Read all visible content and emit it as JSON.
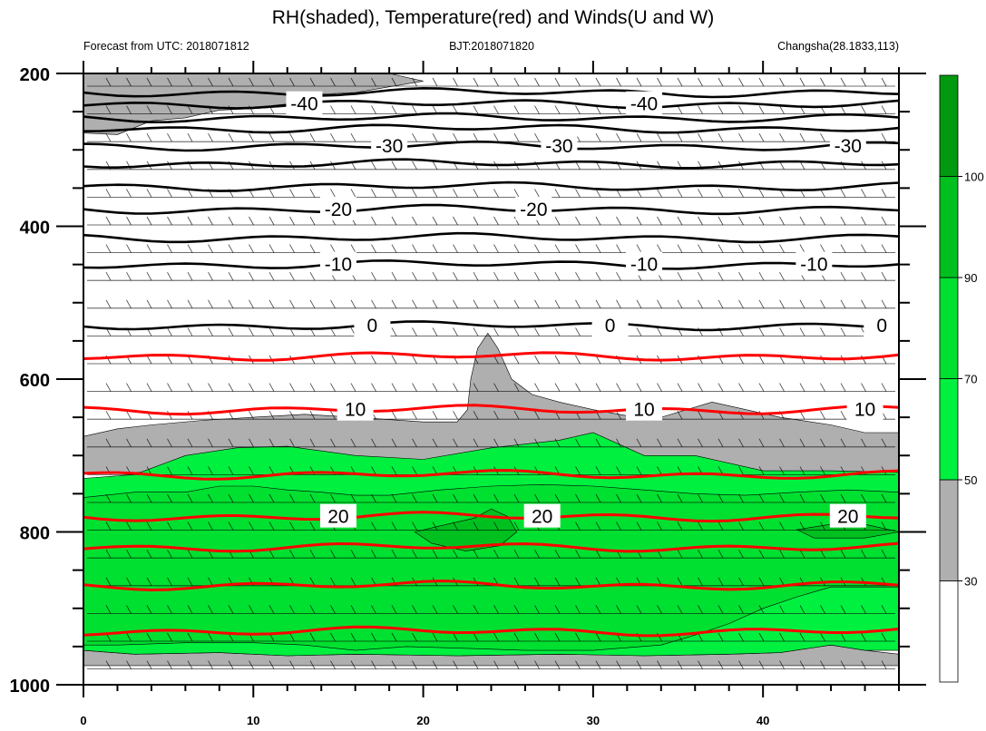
{
  "chart_data": {
    "type": "contour",
    "title": "RH(shaded), Temperature(red) and Winds(U and W)",
    "left_string": "Forecast from UTC: 2018071812",
    "center_string": "BJT:2018071820",
    "right_string": "Changsha(28.1833,113)",
    "x_axis": {
      "range": [
        0,
        48
      ],
      "ticks": [
        "0",
        "10",
        "20",
        "30",
        "40"
      ]
    },
    "y_axis": {
      "range": [
        200,
        1000
      ],
      "inverted": true,
      "ticks": [
        "200",
        "400",
        "600",
        "800",
        "1000"
      ]
    },
    "colorbar": {
      "levels": [
        "30",
        "50",
        "70",
        "90",
        "100"
      ],
      "colors": [
        "#ffffff",
        "#afafaf",
        "#00f040",
        "#00e030",
        "#00c020",
        "#009a10"
      ]
    },
    "rh_shading": [
      {
        "level": "gray",
        "color": "#afafaf",
        "points": [
          [
            0,
            200
          ],
          [
            0,
            278
          ],
          [
            2,
            280
          ],
          [
            4,
            262
          ],
          [
            6,
            258
          ],
          [
            8,
            248
          ],
          [
            10,
            246
          ],
          [
            13,
            242
          ],
          [
            13,
            228
          ],
          [
            16,
            225
          ],
          [
            20,
            210
          ],
          [
            18,
            200
          ]
        ]
      },
      {
        "level": "gray",
        "color": "#afafaf",
        "points": [
          [
            0,
            675
          ],
          [
            2,
            665
          ],
          [
            4,
            660
          ],
          [
            7,
            654
          ],
          [
            10,
            650
          ],
          [
            13,
            646
          ],
          [
            16,
            650
          ],
          [
            20,
            656
          ],
          [
            22,
            656
          ],
          [
            22.6,
            640
          ],
          [
            22.8,
            600
          ],
          [
            23.2,
            560
          ],
          [
            23.8,
            540
          ],
          [
            24.4,
            560
          ],
          [
            25.2,
            600
          ],
          [
            26.4,
            620
          ],
          [
            28,
            630
          ],
          [
            30,
            640
          ],
          [
            32,
            648
          ],
          [
            34,
            650
          ],
          [
            35.5,
            640
          ],
          [
            37,
            630
          ],
          [
            39,
            640
          ],
          [
            41,
            650
          ],
          [
            44,
            660
          ],
          [
            46,
            670
          ],
          [
            48,
            670
          ],
          [
            48,
            722
          ],
          [
            0,
            722
          ]
        ]
      },
      {
        "level": "gray",
        "color": "#afafaf",
        "points": [
          [
            0,
            955
          ],
          [
            3,
            960
          ],
          [
            8,
            958
          ],
          [
            12,
            962
          ],
          [
            16,
            960
          ],
          [
            22,
            962
          ],
          [
            28,
            960
          ],
          [
            33,
            962
          ],
          [
            38,
            960
          ],
          [
            41,
            958
          ],
          [
            44,
            948
          ],
          [
            46,
            955
          ],
          [
            48,
            960
          ],
          [
            48,
            975
          ],
          [
            0,
            975
          ]
        ]
      },
      {
        "level": "50-70",
        "color": "#00f040",
        "points": [
          [
            0,
            730
          ],
          [
            3,
            725
          ],
          [
            6,
            700
          ],
          [
            9,
            690
          ],
          [
            12,
            688
          ],
          [
            16,
            700
          ],
          [
            20,
            705
          ],
          [
            24,
            690
          ],
          [
            28,
            680
          ],
          [
            30,
            670
          ],
          [
            33,
            700
          ],
          [
            36,
            700
          ],
          [
            40,
            720
          ],
          [
            44,
            720
          ],
          [
            48,
            722
          ],
          [
            48,
            955
          ],
          [
            46,
            955
          ],
          [
            44,
            948
          ],
          [
            41,
            958
          ],
          [
            38,
            960
          ],
          [
            33,
            962
          ],
          [
            28,
            960
          ],
          [
            22,
            962
          ],
          [
            16,
            960
          ],
          [
            12,
            962
          ],
          [
            8,
            958
          ],
          [
            3,
            960
          ],
          [
            0,
            955
          ]
        ]
      },
      {
        "level": "70-90",
        "color": "#00e030",
        "points": [
          [
            0,
            755
          ],
          [
            3,
            748
          ],
          [
            6,
            748
          ],
          [
            8,
            740
          ],
          [
            10,
            740
          ],
          [
            12,
            745
          ],
          [
            14,
            748
          ],
          [
            16,
            752
          ],
          [
            18,
            752
          ],
          [
            21,
            745
          ],
          [
            24,
            740
          ],
          [
            27,
            738
          ],
          [
            30,
            740
          ],
          [
            33,
            745
          ],
          [
            36,
            750
          ],
          [
            39,
            752
          ],
          [
            42,
            748
          ],
          [
            45,
            745
          ],
          [
            48,
            748
          ],
          [
            48,
            872
          ],
          [
            44,
            872
          ],
          [
            42,
            885
          ],
          [
            40,
            900
          ],
          [
            38,
            920
          ],
          [
            36,
            935
          ],
          [
            34,
            948
          ],
          [
            30,
            955
          ],
          [
            26,
            955
          ],
          [
            22,
            952
          ],
          [
            19,
            950
          ],
          [
            16,
            955
          ],
          [
            13,
            948
          ],
          [
            10,
            945
          ],
          [
            6,
            945
          ],
          [
            2,
            948
          ],
          [
            0,
            948
          ]
        ]
      },
      {
        "level": "90-100",
        "color": "#00c020",
        "points": [
          [
            19.5,
            800
          ],
          [
            21,
            792
          ],
          [
            23,
            782
          ],
          [
            24,
            770
          ],
          [
            25,
            780
          ],
          [
            25.5,
            800
          ],
          [
            24.5,
            818
          ],
          [
            22.5,
            825
          ],
          [
            20.5,
            815
          ]
        ]
      },
      {
        "level": "90-100",
        "color": "#00c020",
        "points": [
          [
            42,
            797
          ],
          [
            44,
            790
          ],
          [
            46,
            790
          ],
          [
            48,
            800
          ],
          [
            46,
            808
          ],
          [
            43,
            808
          ]
        ]
      }
    ],
    "temperature_contours": [
      {
        "label": "-40",
        "color": "#000000",
        "levels": [
          225,
          240,
          258
        ]
      },
      {
        "label": "-30",
        "color": "#000000",
        "levels": [
          272,
          295,
          318
        ]
      },
      {
        "label": "-20",
        "color": "#000000",
        "levels": [
          348,
          378
        ]
      },
      {
        "label": "-10",
        "color": "#000000",
        "levels": [
          415,
          450
        ]
      },
      {
        "label": "0",
        "color": "#000000",
        "levels": [
          530
        ]
      },
      {
        "label": "10",
        "color": "#ff0000",
        "levels": [
          570,
          640
        ]
      },
      {
        "label": "20",
        "color": "#ff0000",
        "levels": [
          725,
          780,
          820,
          870,
          930
        ]
      }
    ]
  }
}
